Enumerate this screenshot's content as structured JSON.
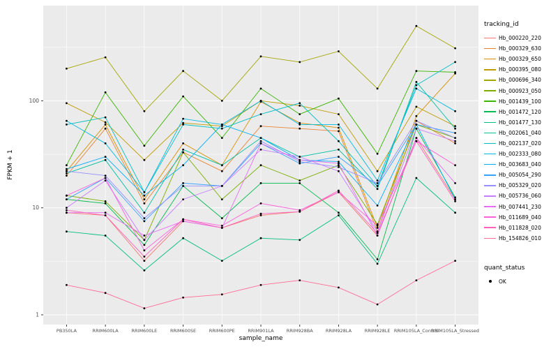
{
  "chart_data": {
    "type": "line",
    "title": "",
    "xlabel": "sample_name",
    "ylabel": "FPKM + 1",
    "y_scale": "log10",
    "y_ticks": [
      1,
      10,
      100
    ],
    "y_minor_ticks": [
      3.1623,
      31.623,
      316.23
    ],
    "ylim": [
      0.8,
      700
    ],
    "grid": true,
    "panel_bg": "#EBEBEB",
    "grid_color": "#FFFFFF",
    "point_color": "#000000",
    "axis_text_color": "#4D4D4D",
    "tick_color": "#333333",
    "legend_title": "tracking_id",
    "legend_position": "right",
    "categories": [
      "PB350LA",
      "RRIM600LA",
      "RRIM600LE",
      "RRIM600SE",
      "RRIM600PE",
      "RRIM901LA",
      "RRIM928BA",
      "RRIM928LA",
      "RRIM928LE",
      "RRIM105LA_Control",
      "RRIM105LA_Stressed"
    ],
    "series": [
      {
        "name": "Hb_000220_220",
        "color": "#F8766D",
        "values": [
          9,
          8.5,
          3.2,
          7.5,
          6.5,
          8.5,
          9.2,
          14,
          5.5,
          45,
          12
        ]
      },
      {
        "name": "Hb_000329_630",
        "color": "#EA8331",
        "values": [
          20,
          55,
          11,
          33,
          22,
          58,
          55,
          52,
          6,
          65,
          40
        ]
      },
      {
        "name": "Hb_000329_650",
        "color": "#D89000",
        "values": [
          22,
          60,
          12,
          40,
          25,
          98,
          62,
          56,
          6.5,
          72,
          180
        ]
      },
      {
        "name": "Hb_000395_080",
        "color": "#C09B00",
        "values": [
          95,
          63,
          28,
          62,
          58,
          100,
          90,
          75,
          22,
          88,
          58
        ]
      },
      {
        "name": "Hb_000696_340",
        "color": "#A3A500",
        "values": [
          200,
          255,
          80,
          190,
          100,
          260,
          230,
          290,
          130,
          500,
          310
        ]
      },
      {
        "name": "Hb_000923_050",
        "color": "#7CAE00",
        "values": [
          13,
          11.5,
          5,
          33,
          12,
          25,
          18,
          25,
          7,
          60,
          45
        ]
      },
      {
        "name": "Hb_001439_100",
        "color": "#39B600",
        "values": [
          25,
          120,
          38,
          110,
          45,
          130,
          75,
          105,
          32,
          190,
          185
        ]
      },
      {
        "name": "Hb_001472_120",
        "color": "#00BB4E",
        "values": [
          12,
          11,
          4.5,
          16,
          8,
          17,
          17,
          9,
          3.3,
          55,
          12.5
        ]
      },
      {
        "name": "Hb_001477_130",
        "color": "#00BF7D",
        "values": [
          6,
          5.5,
          2.6,
          5.2,
          3.2,
          5.2,
          5,
          8.5,
          3,
          19,
          9
        ]
      },
      {
        "name": "Hb_002061_040",
        "color": "#00C1A3",
        "values": [
          21,
          28,
          9,
          35,
          25,
          45,
          30,
          35,
          15,
          150,
          55
        ]
      },
      {
        "name": "Hb_002137_020",
        "color": "#00BFC4",
        "values": [
          60,
          70,
          14,
          60,
          55,
          75,
          95,
          42,
          16,
          140,
          230
        ]
      },
      {
        "name": "Hb_002333_080",
        "color": "#00BAE0",
        "values": [
          65,
          40,
          14,
          68,
          60,
          100,
          60,
          60,
          18,
          130,
          80
        ]
      },
      {
        "name": "Hb_003683_040",
        "color": "#00B0F6",
        "values": [
          23,
          30,
          13,
          25,
          60,
          45,
          28,
          27,
          10.5,
          60,
          12
        ]
      },
      {
        "name": "Hb_005054_290",
        "color": "#35A2FF",
        "values": [
          12,
          19,
          7.5,
          17,
          16,
          40,
          26,
          30,
          16,
          60,
          50
        ]
      },
      {
        "name": "Hb_005329_020",
        "color": "#9590FF",
        "values": [
          22,
          20,
          8,
          16,
          16,
          42,
          27,
          24,
          17,
          65,
          45
        ]
      },
      {
        "name": "Hb_005736_060",
        "color": "#C77CFF",
        "values": [
          10,
          18,
          5,
          12,
          16,
          35,
          30,
          22,
          6,
          55,
          42
        ]
      },
      {
        "name": "Hb_007441_230",
        "color": "#E76BF3",
        "values": [
          9,
          9,
          5.5,
          7.5,
          6.5,
          40,
          28,
          26,
          5.5,
          45,
          17
        ]
      },
      {
        "name": "Hb_011689_040",
        "color": "#FA62DB",
        "values": [
          13,
          19,
          4,
          7.8,
          6.8,
          11,
          9.5,
          14,
          6.8,
          42,
          25
        ]
      },
      {
        "name": "Hb_011828_020",
        "color": "#FF62BC",
        "values": [
          9.5,
          8.5,
          3.5,
          7.8,
          6.5,
          8.8,
          9.2,
          14.5,
          5.8,
          42,
          11.5
        ]
      },
      {
        "name": "Hb_154826_010",
        "color": "#FF6A98",
        "values": [
          1.9,
          1.6,
          1.15,
          1.45,
          1.55,
          1.9,
          2.1,
          1.8,
          1.25,
          2.1,
          3.2
        ]
      }
    ],
    "quant_legend": {
      "title": "quant_status",
      "items": [
        {
          "label": "OK",
          "marker": "point",
          "color": "#000000"
        }
      ]
    }
  }
}
